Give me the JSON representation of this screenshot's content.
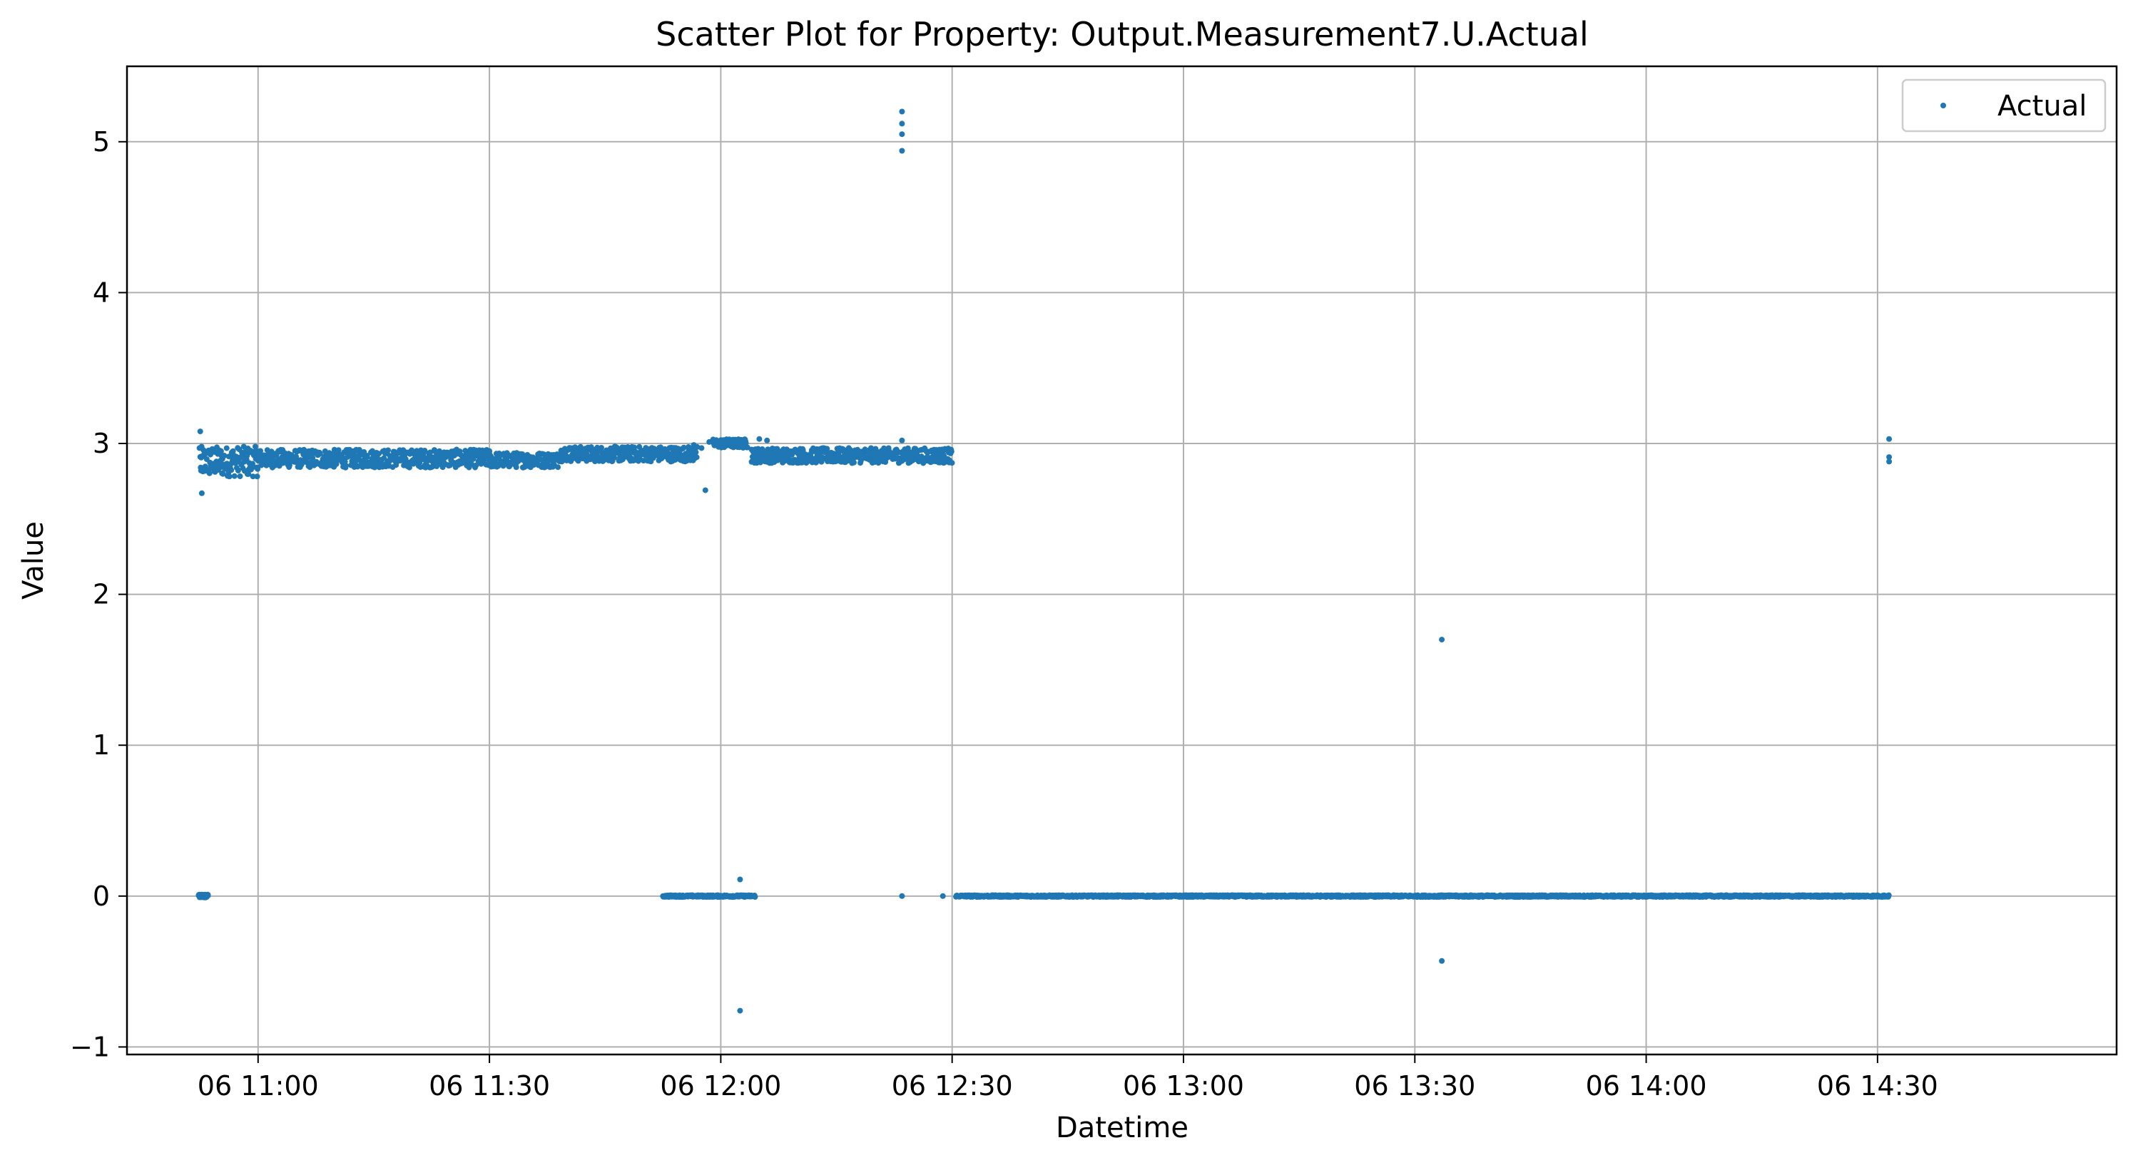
{
  "chart_data": {
    "type": "scatter",
    "title": "Scatter Plot for Property: Output.Measurement7.U.Actual",
    "xlabel": "Datetime",
    "ylabel": "Value",
    "x_unit": "minutes since 06 11:00",
    "xlim": [
      -17,
      241
    ],
    "ylim": [
      -1.05,
      5.5
    ],
    "grid": true,
    "legend_position": "top-right",
    "x_ticks": [
      {
        "value": 0,
        "label": "06 11:00"
      },
      {
        "value": 30,
        "label": "06 11:30"
      },
      {
        "value": 60,
        "label": "06 12:00"
      },
      {
        "value": 90,
        "label": "06 12:30"
      },
      {
        "value": 120,
        "label": "06 13:00"
      },
      {
        "value": 150,
        "label": "06 13:30"
      },
      {
        "value": 180,
        "label": "06 14:00"
      },
      {
        "value": 210,
        "label": "06 14:30"
      }
    ],
    "y_ticks": [
      {
        "value": -1,
        "label": "−1"
      },
      {
        "value": 0,
        "label": "0"
      },
      {
        "value": 1,
        "label": "1"
      },
      {
        "value": 2,
        "label": "2"
      },
      {
        "value": 3,
        "label": "3"
      },
      {
        "value": 4,
        "label": "4"
      },
      {
        "value": 5,
        "label": "5"
      }
    ],
    "series": [
      {
        "name": "Actual",
        "color": "#1f77b4",
        "dense_bands": [
          {
            "x_start": -7.5,
            "x_end": 0,
            "y_center": 2.88,
            "y_spread": 0.1
          },
          {
            "x_start": 0,
            "x_end": 30,
            "y_center": 2.9,
            "y_spread": 0.06
          },
          {
            "x_start": 30,
            "x_end": 39,
            "y_center": 2.89,
            "y_spread": 0.05
          },
          {
            "x_start": 39,
            "x_end": 57,
            "y_center": 2.93,
            "y_spread": 0.05
          },
          {
            "x_start": 59,
            "x_end": 63.5,
            "y_center": 3.0,
            "y_spread": 0.03
          },
          {
            "x_start": 64,
            "x_end": 83.5,
            "y_center": 2.92,
            "y_spread": 0.05
          },
          {
            "x_start": 83.5,
            "x_end": 90,
            "y_center": 2.92,
            "y_spread": 0.05
          },
          {
            "x_start": -7.7,
            "x_end": -6.5,
            "y_center": 0.0,
            "y_spread": 0.01
          },
          {
            "x_start": -7.7,
            "x_end": -6.5,
            "y_center": 0.0,
            "y_spread": 0.01
          },
          {
            "x_start": 52.5,
            "x_end": 64.5,
            "y_center": 0.0,
            "y_spread": 0.006
          },
          {
            "x_start": 90.5,
            "x_end": 211.5,
            "y_center": 0.0,
            "y_spread": 0.006
          }
        ],
        "points": [
          {
            "x": -7.5,
            "y": 3.08
          },
          {
            "x": -7.3,
            "y": 2.67
          },
          {
            "x": -7.6,
            "y": 2.97
          },
          {
            "x": -7.4,
            "y": 2.82
          },
          {
            "x": 56.5,
            "y": 2.99
          },
          {
            "x": 57.5,
            "y": 2.97
          },
          {
            "x": 58.0,
            "y": 2.69
          },
          {
            "x": 58.5,
            "y": 3.01
          },
          {
            "x": 62.5,
            "y": 0.11
          },
          {
            "x": 62.5,
            "y": -0.76
          },
          {
            "x": 65.0,
            "y": 3.03
          },
          {
            "x": 66.0,
            "y": 3.02
          },
          {
            "x": 64.0,
            "y": 2.96
          },
          {
            "x": 83.5,
            "y": 5.2
          },
          {
            "x": 83.5,
            "y": 5.12
          },
          {
            "x": 83.5,
            "y": 5.05
          },
          {
            "x": 83.5,
            "y": 4.94
          },
          {
            "x": 83.5,
            "y": 3.02
          },
          {
            "x": 83.5,
            "y": 0.0
          },
          {
            "x": 88.8,
            "y": 0.0
          },
          {
            "x": 153.5,
            "y": 1.7
          },
          {
            "x": 153.5,
            "y": -0.43
          },
          {
            "x": 211.5,
            "y": 3.03
          },
          {
            "x": 211.5,
            "y": 2.91
          },
          {
            "x": 211.5,
            "y": 2.88
          }
        ]
      }
    ]
  }
}
